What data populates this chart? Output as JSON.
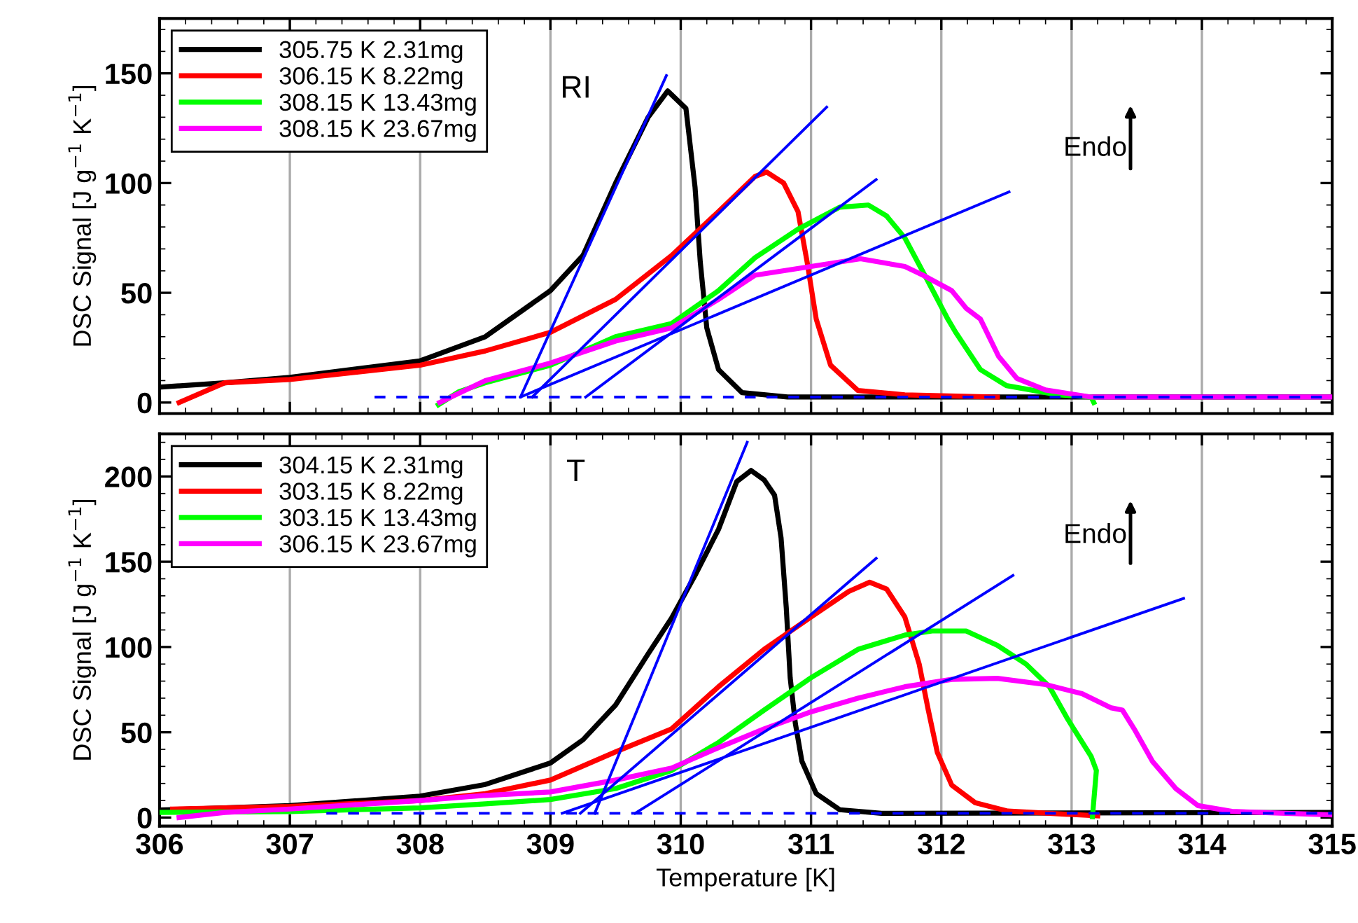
{
  "chart_data": [
    {
      "type": "line",
      "ylabel": "DSC Signal [J g$^{−1}$ K$^{−1}$]",
      "annotations": [
        "RI",
        "Endo"
      ],
      "xlim": [
        306,
        315
      ],
      "xticks": [
        306,
        307,
        308,
        309,
        310,
        311,
        312,
        313,
        314,
        315
      ],
      "ylim": [
        -5,
        175
      ],
      "yticks": [
        0,
        50,
        100,
        150
      ],
      "tick_labels": "y",
      "grid": "x",
      "legend": "top left",
      "series": [
        {
          "name": "305.75 K 2.31mg",
          "color": "#000000",
          "x": [
            306,
            306.5,
            307,
            308,
            308.5,
            309,
            309.25,
            309.5,
            309.75,
            309.9,
            310.04,
            310.11,
            310.15,
            310.2,
            310.29,
            310.47,
            310.82,
            312,
            315
          ],
          "values": [
            7,
            9,
            11.5,
            19,
            30,
            51,
            67,
            100,
            130,
            142,
            134,
            98,
            64,
            34,
            15,
            4.5,
            2.5,
            2.5,
            2.5
          ]
        },
        {
          "name": "306.15 K 8.22mg",
          "color": "#ff0000",
          "x": [
            306.15,
            306.5,
            307,
            308,
            308.5,
            309,
            309.5,
            309.93,
            310.29,
            310.57,
            310.66,
            310.79,
            310.9,
            310.97,
            311.04,
            311.15,
            311.36,
            311.72,
            312.43
          ],
          "values": [
            0,
            9,
            10.5,
            17,
            23.5,
            32,
            47,
            67,
            87,
            103,
            105,
            100,
            87,
            64,
            38,
            17,
            5.5,
            3.5,
            2.5
          ]
        },
        {
          "name": "308.15 K 13.43mg",
          "color": "#00ff00",
          "x": [
            308.14,
            308.3,
            308.5,
            309,
            309.5,
            309.93,
            310.29,
            310.57,
            310.9,
            311.22,
            311.44,
            311.58,
            311.72,
            311.9,
            312.05,
            312.11,
            312.3,
            312.5,
            312.9,
            313.15,
            313.17
          ],
          "values": [
            -1,
            5,
            9,
            17,
            30,
            36,
            51,
            66,
            79,
            89,
            90,
            85,
            75,
            55,
            38,
            32,
            15,
            7.7,
            3.5,
            2.5,
            0
          ]
        },
        {
          "name": "308.15 K 23.67mg",
          "color": "#ff00ff",
          "x": [
            308.15,
            308.5,
            309,
            309.5,
            309.93,
            310.29,
            310.57,
            311.0,
            311.38,
            311.72,
            311.86,
            312.08,
            312.19,
            312.3,
            312.44,
            312.58,
            312.8,
            313.15,
            315
          ],
          "values": [
            0,
            10,
            18,
            28,
            34,
            47,
            58,
            62,
            65.5,
            62,
            58,
            51,
            43,
            38,
            21,
            11,
            5.7,
            2.5,
            2.5
          ]
        },
        {
          "color": "#0000ff",
          "x": [
            308.77,
            309.89
          ],
          "values": [
            2.5,
            149
          ]
        },
        {
          "color": "#0000ff",
          "x": [
            308.86,
            311.12
          ],
          "values": [
            2.5,
            134.6
          ]
        },
        {
          "color": "#0000ff",
          "x": [
            309.27,
            311.5
          ],
          "values": [
            2.5,
            101.6
          ]
        },
        {
          "color": "#0000ff",
          "x": [
            308.77,
            312.52
          ],
          "values": [
            2.5,
            96
          ]
        },
        {
          "color": "#0000ff",
          "line_style": "dashed",
          "x": [
            307.65,
            315
          ],
          "values": [
            2.5,
            2.5
          ]
        }
      ]
    },
    {
      "type": "line",
      "xlabel": "Temperature [K]",
      "ylabel": "DSC Signal [J g$^{−1}$ K$^{−1}$]",
      "annotations": [
        "T",
        "Endo"
      ],
      "xlim": [
        306,
        315
      ],
      "xticks": [
        306,
        307,
        308,
        309,
        310,
        311,
        312,
        313,
        314,
        315
      ],
      "ylim": [
        -5,
        225
      ],
      "yticks": [
        0,
        50,
        100,
        150,
        200
      ],
      "grid": "x",
      "legend": "top left",
      "series": [
        {
          "name": "304.15 K 2.31mg",
          "color": "#000000",
          "x": [
            306,
            307,
            308,
            308.5,
            309,
            309.25,
            309.5,
            309.75,
            309.93,
            310.11,
            310.29,
            310.43,
            310.54,
            310.64,
            310.72,
            310.77,
            310.81,
            310.84,
            310.88,
            310.93,
            311.04,
            311.22,
            311.54,
            315
          ],
          "values": [
            4.4,
            7,
            12.6,
            19.4,
            32,
            45.6,
            66,
            96,
            117,
            142,
            169,
            197,
            203.5,
            198,
            189,
            164,
            123,
            82,
            55,
            33,
            14,
            4.6,
            2.5,
            3
          ]
        },
        {
          "name": "303.15 K 8.22mg",
          "color": "#ff0000",
          "x": [
            306.1,
            307,
            308,
            308.5,
            309,
            309.5,
            309.93,
            310.29,
            310.64,
            311.0,
            311.29,
            311.45,
            311.58,
            311.72,
            311.83,
            311.9,
            311.97,
            312.08,
            312.26,
            312.51,
            313.2
          ],
          "values": [
            5,
            6.5,
            10,
            14,
            22,
            38.5,
            52,
            76.7,
            98.6,
            117.6,
            132.6,
            138,
            134,
            117.6,
            90,
            63,
            38,
            19,
            8.7,
            3.8,
            1
          ]
        },
        {
          "name": "303.15 K 13.43mg",
          "color": "#00ff00",
          "x": [
            306,
            307,
            308,
            308.5,
            309,
            309.5,
            309.93,
            310.29,
            310.64,
            311.0,
            311.36,
            311.72,
            311.93,
            312.19,
            312.43,
            312.65,
            312.83,
            312.97,
            313.15,
            313.19,
            313.16
          ],
          "values": [
            3,
            3.5,
            5.7,
            8,
            10.6,
            17,
            27.6,
            44,
            63,
            82,
            98.6,
            107,
            109.4,
            109.4,
            101,
            90,
            76.7,
            57.7,
            35.8,
            27.6,
            0.5
          ]
        },
        {
          "name": "306.15 K 23.67mg",
          "color": "#ff00ff",
          "x": [
            306.15,
            306.5,
            307,
            308,
            308.5,
            309,
            309.5,
            309.93,
            310.29,
            310.64,
            311.0,
            311.36,
            311.72,
            312.08,
            312.43,
            312.8,
            313.08,
            313.3,
            313.39,
            313.48,
            313.62,
            313.8,
            313.97,
            314.23,
            315
          ],
          "values": [
            0,
            3,
            5,
            10,
            13,
            15,
            22,
            29,
            41,
            52,
            62,
            70,
            76.7,
            81,
            81.6,
            78,
            72.6,
            64.4,
            63,
            52,
            33,
            17,
            7,
            3.6,
            1.6
          ]
        },
        {
          "color": "#0000ff",
          "x": [
            309.34,
            310.51
          ],
          "values": [
            2.5,
            220
          ]
        },
        {
          "color": "#0000ff",
          "x": [
            309.23,
            311.5
          ],
          "values": [
            2.5,
            152
          ]
        },
        {
          "color": "#0000ff",
          "x": [
            309.65,
            312.55
          ],
          "values": [
            2.5,
            142
          ]
        },
        {
          "color": "#0000ff",
          "x": [
            309.09,
            313.86
          ],
          "values": [
            2.5,
            128.5
          ]
        },
        {
          "color": "#0000ff",
          "line_style": "dashed",
          "x": [
            307.28,
            315
          ],
          "values": [
            2.5,
            2.5
          ]
        }
      ]
    }
  ]
}
